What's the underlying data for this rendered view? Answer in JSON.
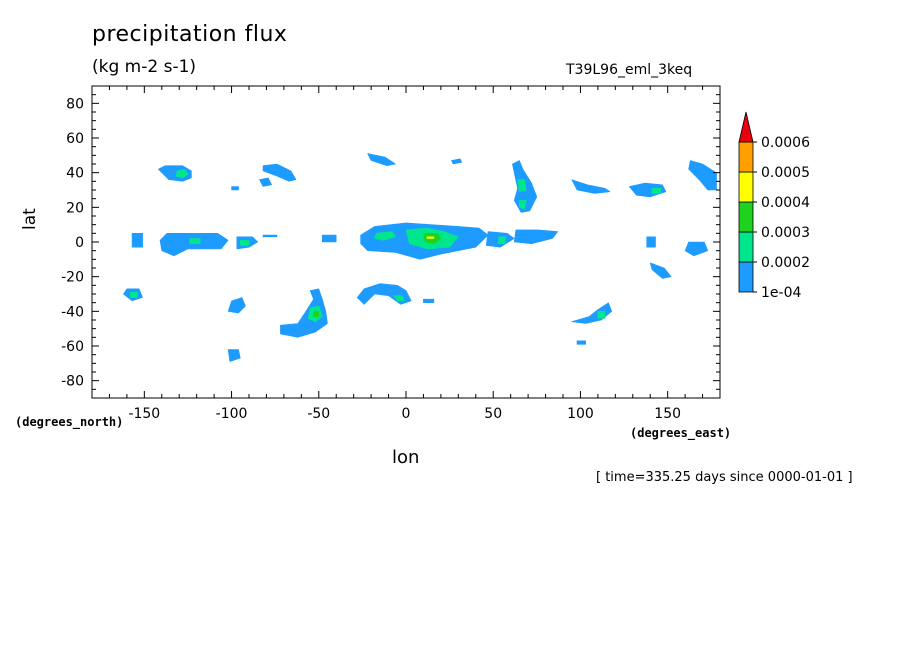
{
  "chart_data": {
    "type": "contourf",
    "title": "precipitation flux",
    "units": "(kg m-2 s-1)",
    "dataset": "T39L96_eml_3keq",
    "xlabel": "lon",
    "ylabel": "lat",
    "x_unit_label": "(degrees_east)",
    "y_unit_label": "(degrees_north)",
    "xlim": [
      -180,
      180
    ],
    "ylim": [
      -90,
      90
    ],
    "xticks": [
      -150,
      -100,
      -50,
      0,
      50,
      100,
      150
    ],
    "yticks": [
      80,
      60,
      40,
      20,
      0,
      -20,
      -40,
      -60,
      -80
    ],
    "xtick_labels": [
      "-150",
      "-100",
      "-50",
      "0",
      "50",
      "100",
      "150"
    ],
    "ytick_labels": [
      "80",
      "60",
      "40",
      "20",
      "0",
      "-20",
      "-40",
      "-60",
      "-80"
    ],
    "levels": [
      0.0001,
      0.0002,
      0.0003,
      0.0004,
      0.0005,
      0.0006
    ],
    "level_labels": [
      "1e-04",
      "0.0002",
      "0.0003",
      "0.0004",
      "0.0005",
      "0.0006"
    ],
    "colors": [
      "#1e9bff",
      "#00e68c",
      "#1ed21e",
      "#ffff00",
      "#ff9f00",
      "#e6000f"
    ],
    "timestamp": "[ time=335.25 days since 0000-01-01 ]",
    "regions": [
      {
        "level": 0,
        "pts": [
          [
            -142,
            42
          ],
          [
            -138,
            44
          ],
          [
            -128,
            44
          ],
          [
            -123,
            41
          ],
          [
            -123,
            37
          ],
          [
            -128,
            35
          ],
          [
            -136,
            36
          ]
        ]
      },
      {
        "level": 1,
        "pts": [
          [
            -131,
            41
          ],
          [
            -127,
            42
          ],
          [
            -125,
            39
          ],
          [
            -128,
            37
          ],
          [
            -132,
            38
          ]
        ]
      },
      {
        "level": 0,
        "pts": [
          [
            -82,
            44
          ],
          [
            -74,
            45
          ],
          [
            -66,
            41
          ],
          [
            -63,
            36
          ],
          [
            -67,
            35
          ],
          [
            -74,
            38
          ],
          [
            -82,
            41
          ]
        ]
      },
      {
        "level": 0,
        "pts": [
          [
            -84,
            36
          ],
          [
            -79,
            37
          ],
          [
            -77,
            33
          ],
          [
            -82,
            32
          ]
        ]
      },
      {
        "level": 0,
        "pts": [
          [
            -100,
            32
          ],
          [
            -96,
            32
          ],
          [
            -96,
            30
          ],
          [
            -100,
            30
          ]
        ]
      },
      {
        "level": 0,
        "pts": [
          [
            -22,
            51
          ],
          [
            -12,
            49
          ],
          [
            -6,
            45
          ],
          [
            -11,
            44
          ],
          [
            -20,
            47
          ]
        ]
      },
      {
        "level": 0,
        "pts": [
          [
            26,
            47
          ],
          [
            31,
            48
          ],
          [
            32,
            46
          ],
          [
            27,
            45
          ]
        ]
      },
      {
        "level": 0,
        "pts": [
          [
            61,
            45
          ],
          [
            65,
            47
          ],
          [
            67,
            42
          ],
          [
            72,
            34
          ],
          [
            75,
            26
          ],
          [
            71,
            18
          ],
          [
            66,
            17
          ],
          [
            62,
            24
          ],
          [
            64,
            31
          ],
          [
            62,
            40
          ]
        ]
      },
      {
        "level": 1,
        "pts": [
          [
            64,
            36
          ],
          [
            68,
            36
          ],
          [
            69,
            30
          ],
          [
            65,
            29
          ]
        ]
      },
      {
        "level": 1,
        "pts": [
          [
            65,
            24
          ],
          [
            69,
            24
          ],
          [
            68,
            19
          ],
          [
            65,
            20
          ]
        ]
      },
      {
        "level": 0,
        "pts": [
          [
            95,
            36
          ],
          [
            104,
            33
          ],
          [
            114,
            31
          ],
          [
            117,
            29
          ],
          [
            108,
            28
          ],
          [
            98,
            30
          ]
        ]
      },
      {
        "level": 0,
        "pts": [
          [
            128,
            32
          ],
          [
            137,
            34
          ],
          [
            147,
            33
          ],
          [
            149,
            29
          ],
          [
            140,
            26
          ],
          [
            132,
            27
          ]
        ]
      },
      {
        "level": 1,
        "pts": [
          [
            141,
            31
          ],
          [
            146,
            31
          ],
          [
            146,
            28
          ],
          [
            141,
            28
          ]
        ]
      },
      {
        "level": 0,
        "pts": [
          [
            163,
            47
          ],
          [
            170,
            45
          ],
          [
            178,
            40
          ],
          [
            178,
            30
          ],
          [
            173,
            30
          ],
          [
            168,
            36
          ],
          [
            162,
            42
          ]
        ]
      },
      {
        "level": 0,
        "pts": [
          [
            -157,
            5
          ],
          [
            -151,
            5
          ],
          [
            -151,
            -3
          ],
          [
            -157,
            -3
          ]
        ]
      },
      {
        "level": 0,
        "pts": [
          [
            -137,
            5
          ],
          [
            -122,
            5
          ],
          [
            -108,
            5
          ],
          [
            -102,
            1
          ],
          [
            -106,
            -4
          ],
          [
            -125,
            -4
          ],
          [
            -133,
            -8
          ],
          [
            -140,
            -5
          ],
          [
            -141,
            1
          ]
        ]
      },
      {
        "level": 1,
        "pts": [
          [
            -124,
            2
          ],
          [
            -118,
            2
          ],
          [
            -118,
            -1
          ],
          [
            -124,
            -1
          ]
        ]
      },
      {
        "level": 0,
        "pts": [
          [
            -97,
            3
          ],
          [
            -88,
            3
          ],
          [
            -85,
            0
          ],
          [
            -90,
            -3
          ],
          [
            -97,
            -4
          ]
        ]
      },
      {
        "level": 1,
        "pts": [
          [
            -95,
            1
          ],
          [
            -90,
            1
          ],
          [
            -90,
            -2
          ],
          [
            -95,
            -2
          ]
        ]
      },
      {
        "level": 0,
        "pts": [
          [
            -82,
            4
          ],
          [
            -74,
            4
          ],
          [
            -74,
            3
          ],
          [
            -82,
            3
          ]
        ]
      },
      {
        "level": 0,
        "pts": [
          [
            -48,
            4
          ],
          [
            -40,
            4
          ],
          [
            -40,
            0
          ],
          [
            -48,
            0
          ]
        ]
      },
      {
        "level": 0,
        "pts": [
          [
            -26,
            4
          ],
          [
            -18,
            9
          ],
          [
            0,
            11
          ],
          [
            15,
            10
          ],
          [
            30,
            9
          ],
          [
            42,
            8
          ],
          [
            47,
            4
          ],
          [
            40,
            -3
          ],
          [
            20,
            -7
          ],
          [
            8,
            -10
          ],
          [
            -6,
            -6
          ],
          [
            -22,
            -5
          ],
          [
            -26,
            -1
          ]
        ]
      },
      {
        "level": 0,
        "pts": [
          [
            47,
            6
          ],
          [
            58,
            5
          ],
          [
            62,
            2
          ],
          [
            54,
            -3
          ],
          [
            46,
            -2
          ]
        ]
      },
      {
        "level": 1,
        "pts": [
          [
            53,
            3
          ],
          [
            57,
            3
          ],
          [
            57,
            -1
          ],
          [
            53,
            -1
          ]
        ]
      },
      {
        "level": 0,
        "pts": [
          [
            63,
            7
          ],
          [
            76,
            7
          ],
          [
            87,
            6
          ],
          [
            84,
            2
          ],
          [
            72,
            -1
          ],
          [
            62,
            0
          ]
        ]
      },
      {
        "level": 1,
        "pts": [
          [
            -17,
            5
          ],
          [
            -8,
            6
          ],
          [
            -6,
            3
          ],
          [
            -13,
            1
          ],
          [
            -18,
            2
          ]
        ]
      },
      {
        "level": 1,
        "pts": [
          [
            0,
            7
          ],
          [
            12,
            8
          ],
          [
            22,
            6
          ],
          [
            30,
            3
          ],
          [
            25,
            -3
          ],
          [
            12,
            -4
          ],
          [
            2,
            -1
          ]
        ]
      },
      {
        "level": 2,
        "pts": [
          [
            10,
            5
          ],
          [
            18,
            5
          ],
          [
            20,
            2
          ],
          [
            16,
            -1
          ],
          [
            11,
            0
          ]
        ]
      },
      {
        "level": 3,
        "pts": [
          [
            12,
            3
          ],
          [
            16,
            3
          ],
          [
            16,
            2
          ],
          [
            12,
            2
          ]
        ]
      },
      {
        "level": 0,
        "pts": [
          [
            138,
            3
          ],
          [
            143,
            3
          ],
          [
            143,
            -3
          ],
          [
            138,
            -3
          ]
        ]
      },
      {
        "level": 0,
        "pts": [
          [
            162,
            0
          ],
          [
            171,
            0
          ],
          [
            173,
            -5
          ],
          [
            165,
            -8
          ],
          [
            160,
            -5
          ]
        ]
      },
      {
        "level": 0,
        "pts": [
          [
            140,
            -12
          ],
          [
            148,
            -15
          ],
          [
            152,
            -20
          ],
          [
            147,
            -21
          ],
          [
            141,
            -16
          ]
        ]
      },
      {
        "level": 0,
        "pts": [
          [
            -160,
            -27
          ],
          [
            -153,
            -27
          ],
          [
            -151,
            -32
          ],
          [
            -157,
            -34
          ],
          [
            -162,
            -30
          ]
        ]
      },
      {
        "level": 1,
        "pts": [
          [
            -158,
            -29
          ],
          [
            -154,
            -29
          ],
          [
            -154,
            -32
          ],
          [
            -158,
            -32
          ]
        ]
      },
      {
        "level": 0,
        "pts": [
          [
            -100,
            -34
          ],
          [
            -94,
            -32
          ],
          [
            -92,
            -37
          ],
          [
            -96,
            -41
          ],
          [
            -102,
            -40
          ]
        ]
      },
      {
        "level": 0,
        "pts": [
          [
            -55,
            -28
          ],
          [
            -50,
            -27
          ],
          [
            -48,
            -33
          ],
          [
            -46,
            -40
          ],
          [
            -45,
            -47
          ],
          [
            -52,
            -52
          ],
          [
            -62,
            -55
          ],
          [
            -72,
            -53
          ],
          [
            -72,
            -48
          ],
          [
            -62,
            -47
          ],
          [
            -58,
            -41
          ],
          [
            -53,
            -33
          ]
        ]
      },
      {
        "level": 1,
        "pts": [
          [
            -55,
            -38
          ],
          [
            -50,
            -37
          ],
          [
            -48,
            -43
          ],
          [
            -52,
            -46
          ],
          [
            -56,
            -44
          ]
        ]
      },
      {
        "level": 2,
        "pts": [
          [
            -53,
            -40
          ],
          [
            -50,
            -40
          ],
          [
            -50,
            -43
          ],
          [
            -53,
            -43
          ]
        ]
      },
      {
        "level": 0,
        "pts": [
          [
            -28,
            -32
          ],
          [
            -24,
            -27
          ],
          [
            -15,
            -24
          ],
          [
            -5,
            -25
          ],
          [
            0,
            -28
          ],
          [
            3,
            -34
          ],
          [
            -3,
            -36
          ],
          [
            -10,
            -31
          ],
          [
            -18,
            -30
          ],
          [
            -24,
            -36
          ]
        ]
      },
      {
        "level": 1,
        "pts": [
          [
            -7,
            -31
          ],
          [
            -2,
            -31
          ],
          [
            -1,
            -34
          ],
          [
            -5,
            -34
          ]
        ]
      },
      {
        "level": 0,
        "pts": [
          [
            10,
            -33
          ],
          [
            16,
            -33
          ],
          [
            16,
            -35
          ],
          [
            10,
            -35
          ]
        ]
      },
      {
        "level": 0,
        "pts": [
          [
            95,
            -46
          ],
          [
            105,
            -43
          ],
          [
            110,
            -39
          ],
          [
            116,
            -35
          ],
          [
            118,
            -40
          ],
          [
            112,
            -45
          ],
          [
            103,
            -47
          ]
        ]
      },
      {
        "level": 1,
        "pts": [
          [
            110,
            -40
          ],
          [
            114,
            -40
          ],
          [
            114,
            -44
          ],
          [
            110,
            -44
          ]
        ]
      },
      {
        "level": 0,
        "pts": [
          [
            98,
            -57
          ],
          [
            103,
            -57
          ],
          [
            103,
            -59
          ],
          [
            98,
            -59
          ]
        ]
      },
      {
        "level": 0,
        "pts": [
          [
            -102,
            -62
          ],
          [
            -96,
            -62
          ],
          [
            -95,
            -67
          ],
          [
            -101,
            -69
          ]
        ]
      }
    ]
  }
}
